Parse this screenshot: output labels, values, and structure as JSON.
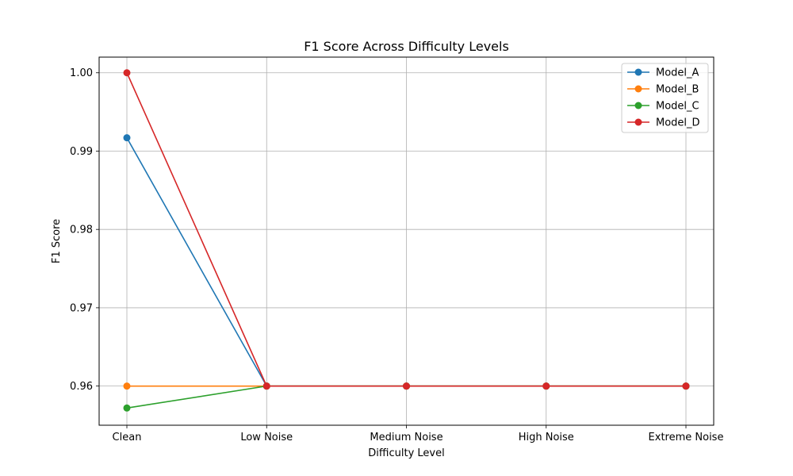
{
  "chart_data": {
    "type": "line",
    "title": "F1 Score Across Difficulty Levels",
    "xlabel": "Difficulty Level",
    "ylabel": "F1 Score",
    "categories": [
      "Clean",
      "Low Noise",
      "Medium Noise",
      "High Noise",
      "Extreme Noise"
    ],
    "ylim": [
      0.955,
      1.002
    ],
    "yticks": [
      0.96,
      0.97,
      0.98,
      0.99,
      1.0
    ],
    "ytick_labels": [
      "0.96",
      "0.97",
      "0.98",
      "0.99",
      "1.00"
    ],
    "grid": true,
    "legend_position": "top-right",
    "series": [
      {
        "name": "Model_A",
        "color": "#1f77b4",
        "values": [
          0.9917,
          0.96,
          0.96,
          0.96,
          0.96
        ]
      },
      {
        "name": "Model_B",
        "color": "#ff7f0e",
        "values": [
          0.96,
          0.96,
          0.96,
          0.96,
          0.96
        ]
      },
      {
        "name": "Model_C",
        "color": "#2ca02c",
        "values": [
          0.9572,
          0.96,
          0.96,
          0.96,
          0.96
        ]
      },
      {
        "name": "Model_D",
        "color": "#d62728",
        "values": [
          1.0,
          0.96,
          0.96,
          0.96,
          0.96
        ]
      }
    ]
  }
}
